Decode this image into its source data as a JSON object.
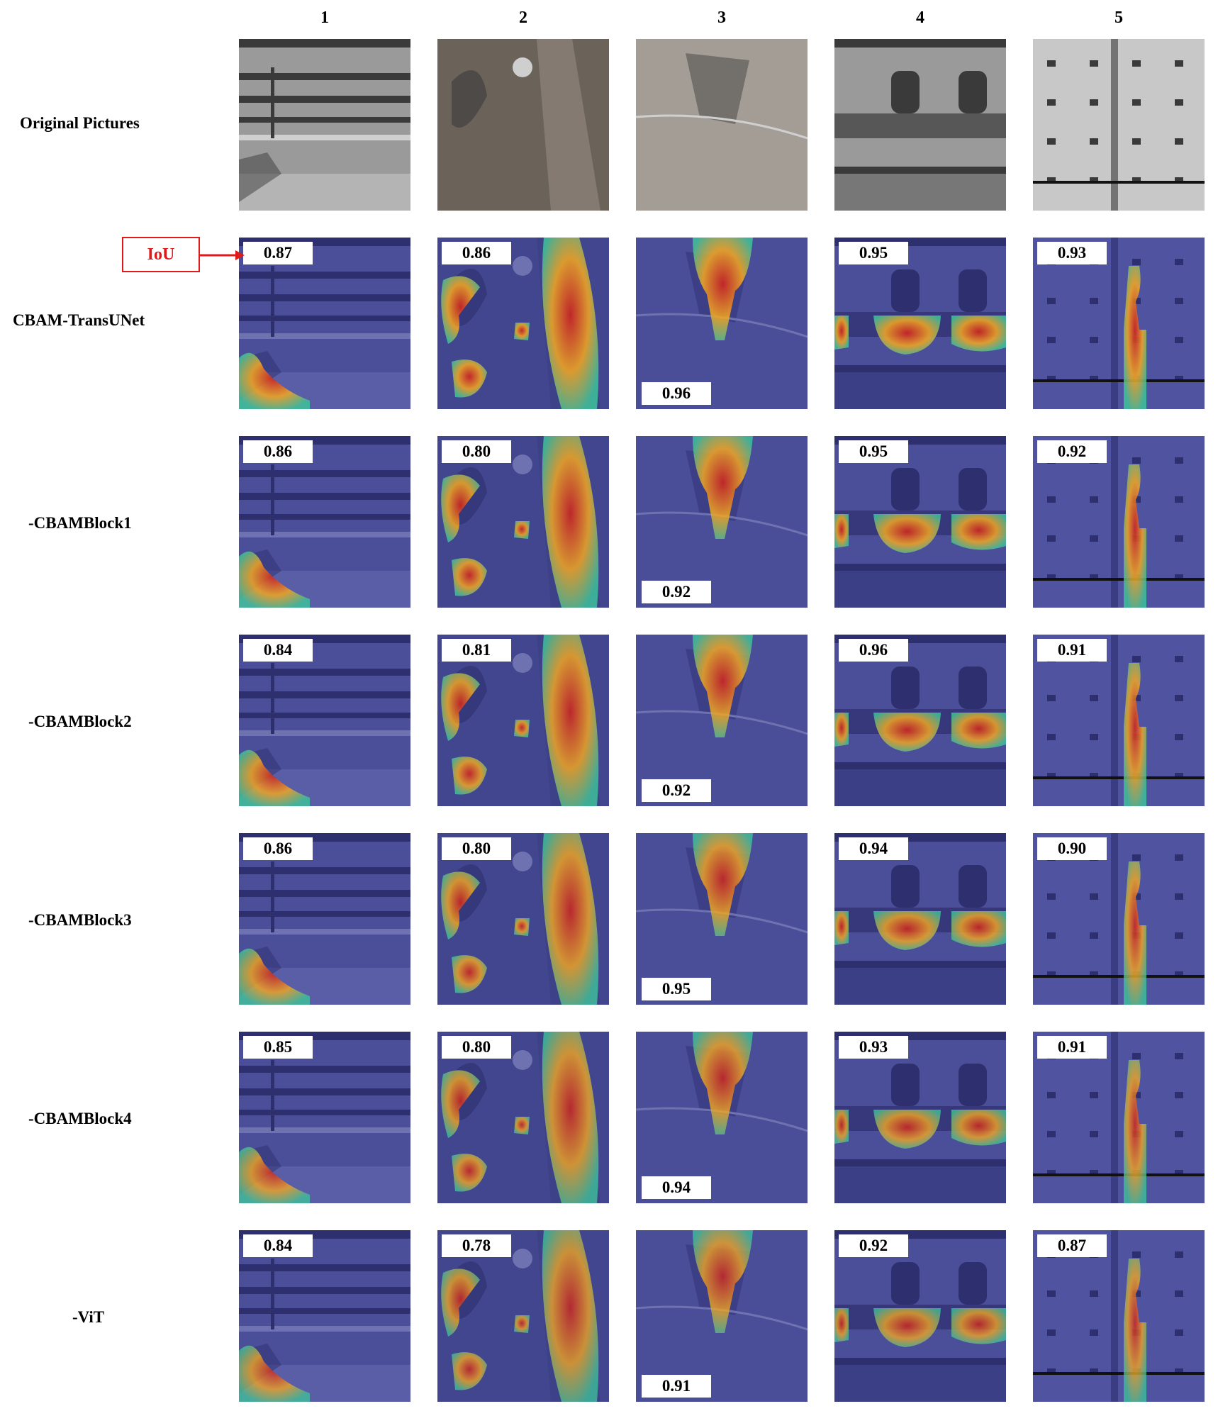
{
  "columns": [
    "1",
    "2",
    "3",
    "4",
    "5"
  ],
  "rows": [
    {
      "label": "Original Pictures",
      "iou": []
    },
    {
      "label": "CBAM-TransUNet",
      "iou": [
        "0.87",
        "0.86",
        "0.96",
        "0.95",
        "0.93"
      ]
    },
    {
      "label": "-CBAMBlock1",
      "iou": [
        "0.86",
        "0.80",
        "0.92",
        "0.95",
        "0.92"
      ]
    },
    {
      "label": "-CBAMBlock2",
      "iou": [
        "0.84",
        "0.81",
        "0.92",
        "0.96",
        "0.91"
      ]
    },
    {
      "label": "-CBAMBlock3",
      "iou": [
        "0.86",
        "0.80",
        "0.95",
        "0.94",
        "0.90"
      ]
    },
    {
      "label": "-CBAMBlock4",
      "iou": [
        "0.85",
        "0.80",
        "0.94",
        "0.93",
        "0.91"
      ]
    },
    {
      "label": "-ViT",
      "iou": [
        "0.84",
        "0.78",
        "0.91",
        "0.92",
        "0.87"
      ]
    }
  ],
  "legend": {
    "label": "IoU",
    "color": "#e0191b"
  },
  "colors": {
    "overlay_background": "#464a96",
    "heat_hot": "#d2231d",
    "heat_warm": "#f0a623",
    "heat_cool": "#3fbf9a"
  }
}
